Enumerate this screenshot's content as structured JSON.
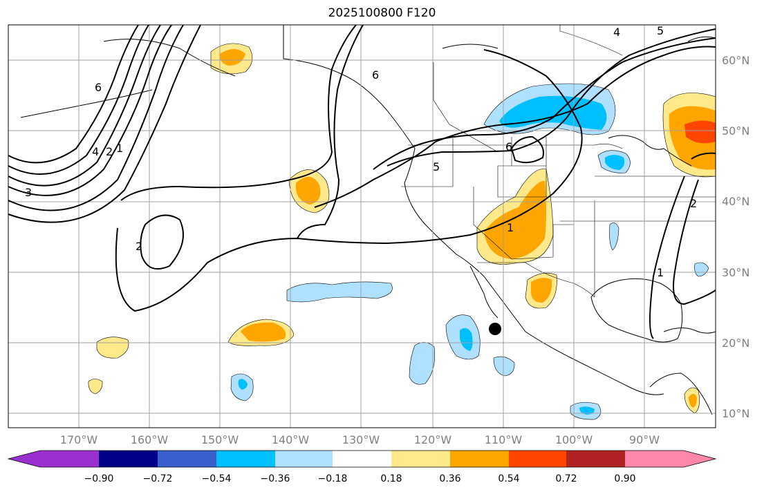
{
  "title": "2025100800 F120",
  "lat_labels": [
    "60°N",
    "50°N",
    "40°N",
    "30°N",
    "20°N",
    "10°N"
  ],
  "lon_labels": [
    "170°W",
    "160°W",
    "150°W",
    "140°W",
    "130°W",
    "120°W",
    "110°W",
    "100°W",
    "90°W"
  ],
  "colorbar": {
    "ticks": [
      "−0.90",
      "−0.72",
      "−0.54",
      "−0.36",
      "−0.18",
      "0.18",
      "0.36",
      "0.54",
      "0.72",
      "0.90"
    ],
    "colors": [
      "#9b30d0",
      "#00008b",
      "#3a5fcd",
      "#00bfff",
      "#b0e0ff",
      "#ffffff",
      "#ffe98a",
      "#ffa500",
      "#ff4500",
      "#b22222",
      "#ff88aa"
    ]
  },
  "contour_labels": [
    "6",
    "4",
    "2",
    "1",
    "3",
    "2",
    "6",
    "5",
    "6",
    "1",
    "4",
    "5",
    "2",
    "1"
  ],
  "marker_label": ""
}
